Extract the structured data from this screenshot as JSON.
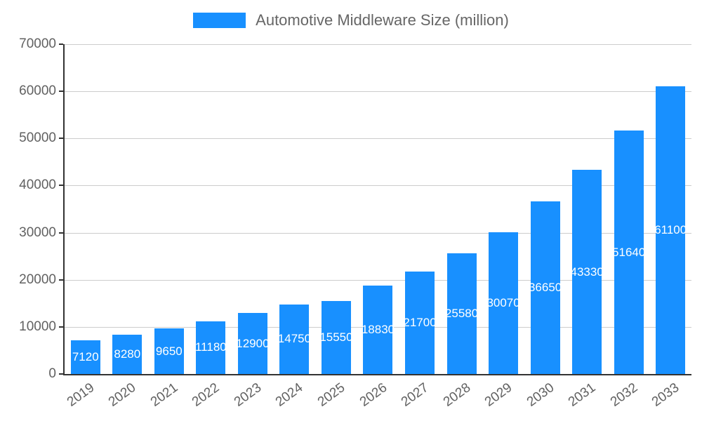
{
  "chart_data": {
    "type": "bar",
    "title": "Automotive Middleware Size (million)",
    "categories": [
      "2019",
      "2020",
      "2021",
      "2022",
      "2023",
      "2024",
      "2025",
      "2026",
      "2027",
      "2028",
      "2029",
      "2030",
      "2031",
      "2032",
      "2033"
    ],
    "values": [
      7120,
      8280,
      9650,
      11180,
      12900,
      14750,
      15550,
      18830,
      21700,
      25580,
      30070,
      36650,
      43330,
      51640,
      61100
    ],
    "xlabel": "",
    "ylabel": "",
    "ylim": [
      0,
      70000
    ],
    "ytick_step": 10000,
    "yticks": [
      0,
      10000,
      20000,
      30000,
      40000,
      50000,
      60000,
      70000
    ],
    "grid": true,
    "legend_position": "top",
    "x_label_rotation_deg": -36,
    "bar_color": "#1890FF",
    "value_label_color": "#FFFFFF",
    "axis_label_color": "#616161",
    "gridline_color": "#CCCCCC",
    "axis_line_color": "#333333",
    "background_color": "#FFFFFF"
  }
}
